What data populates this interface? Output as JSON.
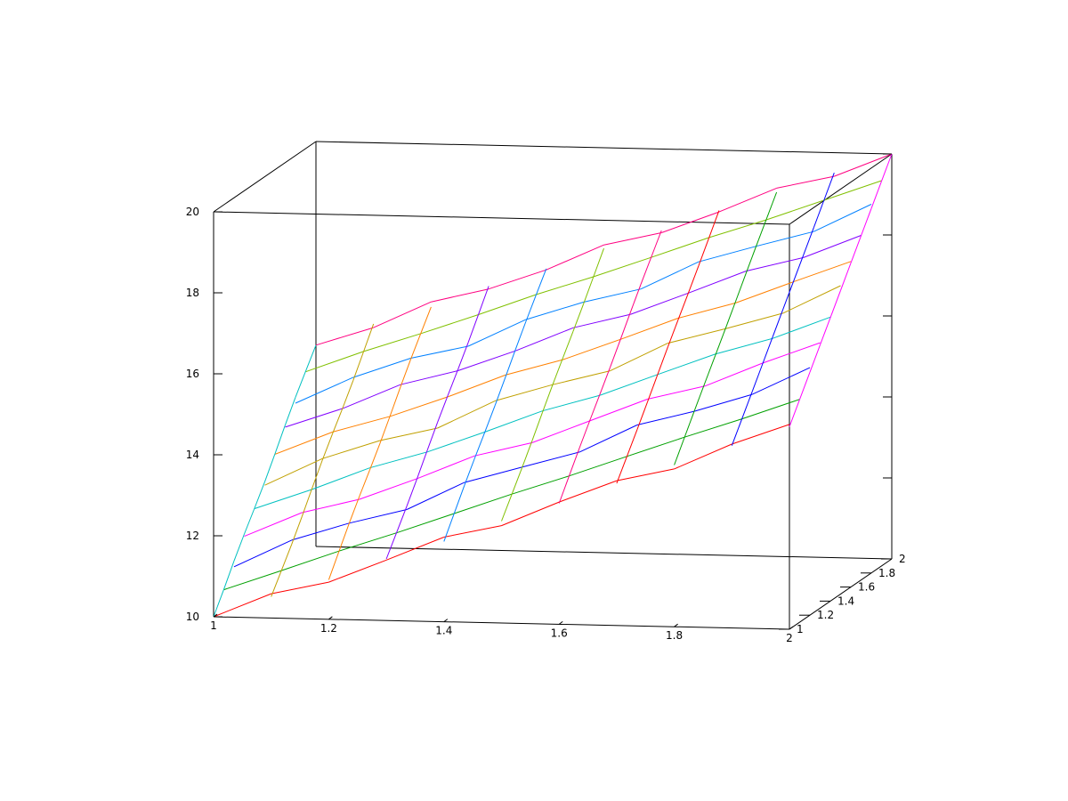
{
  "chart_data": {
    "type": "surface-mesh",
    "title": "",
    "xlabel": "",
    "ylabel": "",
    "zlabel": "",
    "grid": false,
    "legend": "none",
    "xlim": [
      1,
      2
    ],
    "ylim": [
      1,
      2
    ],
    "zlim": [
      10,
      20
    ],
    "x_ticks": [
      1,
      1.2,
      1.4,
      1.6,
      1.8,
      2
    ],
    "x_tick_labels": [
      "1",
      "1.2",
      "1.4",
      "1.6",
      "1.8",
      "2"
    ],
    "y_ticks": [
      1,
      1.2,
      1.4,
      1.6,
      1.8,
      2
    ],
    "y_tick_labels": [
      "1",
      "1.2",
      "1.4",
      "1.6",
      "1.8",
      "2"
    ],
    "z_ticks": [
      10,
      12,
      14,
      16,
      18,
      20
    ],
    "z_tick_labels": [
      "10",
      "12",
      "14",
      "16",
      "18",
      "20"
    ],
    "x": [
      1.0,
      1.1,
      1.2,
      1.3,
      1.4,
      1.5,
      1.6,
      1.7,
      1.8,
      1.9,
      2.0
    ],
    "y": [
      1.0,
      1.1,
      1.2,
      1.3,
      1.4,
      1.5,
      1.6,
      1.7,
      1.8,
      1.9,
      2.0
    ],
    "z_formula": "z = 5*x + 5*y (surface spans 10 at (1,1) to 20 at (2,2))",
    "series_colors": [
      "#ff0000",
      "#00a000",
      "#0000ff",
      "#ff00ff",
      "#00c0c0",
      "#c0a000",
      "#ff8000",
      "#8000ff",
      "#0080ff",
      "#80c000",
      "#ff0080"
    ]
  }
}
